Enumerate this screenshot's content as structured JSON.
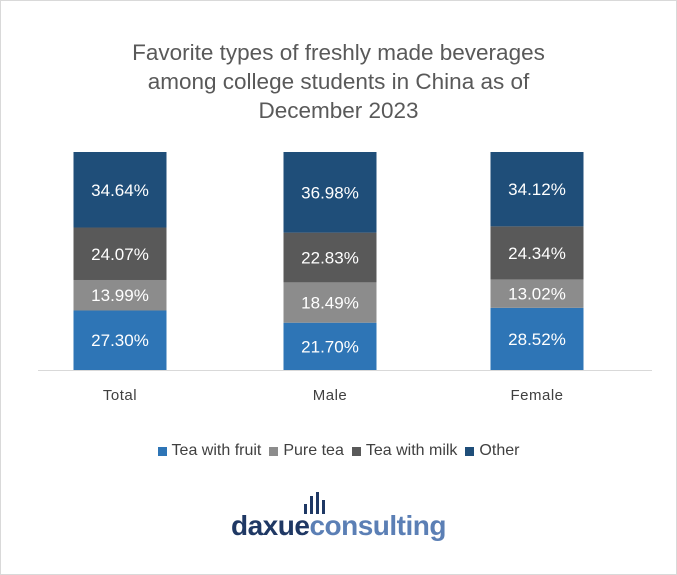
{
  "chart_data": {
    "type": "bar",
    "stacked": true,
    "title_lines": [
      "Favorite types of freshly made beverages",
      "among college students in China as of",
      "December 2023"
    ],
    "categories": [
      "Total",
      "Male",
      "Female"
    ],
    "series": [
      {
        "name": "Tea with fruit",
        "color": "#2e75b6",
        "values": [
          27.3,
          21.7,
          28.52
        ],
        "labels": [
          "27.30%",
          "21.70%",
          "28.52%"
        ]
      },
      {
        "name": "Pure tea",
        "color": "#8c8c8c",
        "values": [
          13.99,
          18.49,
          13.02
        ],
        "labels": [
          "13.99%",
          "18.49%",
          "13.02%"
        ]
      },
      {
        "name": "Tea with milk",
        "color": "#595959",
        "values": [
          24.07,
          22.83,
          24.34
        ],
        "labels": [
          "24.07%",
          "22.83%",
          "24.34%"
        ]
      },
      {
        "name": "Other",
        "color": "#1f4e79",
        "values": [
          34.64,
          36.98,
          34.12
        ],
        "labels": [
          "34.64%",
          "36.98%",
          "34.12%"
        ]
      }
    ],
    "ylim": [
      0,
      100
    ],
    "legend_position": "bottom",
    "grid": false
  },
  "logo": {
    "part1": "daxue",
    "part2": "consulting"
  }
}
